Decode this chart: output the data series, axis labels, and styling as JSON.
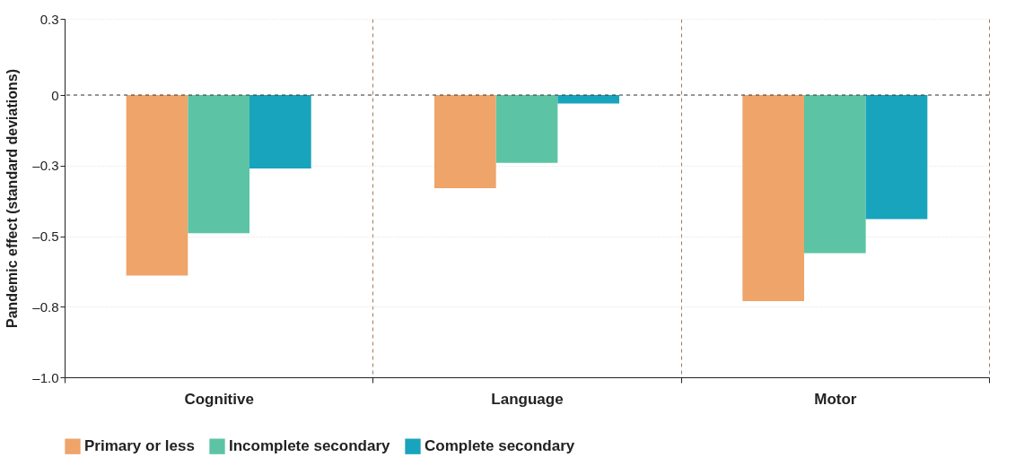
{
  "chart_data": {
    "type": "bar",
    "ylabel": "Pandemic effect (standard deviations)",
    "categories": [
      "Cognitive",
      "Language",
      "Motor"
    ],
    "series": [
      {
        "name": "Primary or less",
        "color": "#efa46a",
        "values": [
          -0.64,
          -0.33,
          -0.73
        ]
      },
      {
        "name": "Incomplete secondary",
        "color": "#5cc4a4",
        "values": [
          -0.49,
          -0.24,
          -0.56
        ]
      },
      {
        "name": "Complete secondary",
        "color": "#18a4bc",
        "values": [
          -0.26,
          -0.03,
          -0.44
        ]
      }
    ],
    "ylim": [
      -1.0,
      0.27
    ],
    "yticks": [
      {
        "value": 0.27,
        "label": "0.3"
      },
      0,
      {
        "value": -0.25,
        "label": "–0.3"
      },
      {
        "value": -0.5,
        "label": "–0.5"
      },
      {
        "value": -0.75,
        "label": "–0.8"
      },
      {
        "value": -1.0,
        "label": "–1.0"
      }
    ],
    "grid": true,
    "legend": "bottom",
    "ref_lines": [
      {
        "axis": "y",
        "value": 0,
        "color": "#333333",
        "line_style": "dashed"
      }
    ]
  }
}
